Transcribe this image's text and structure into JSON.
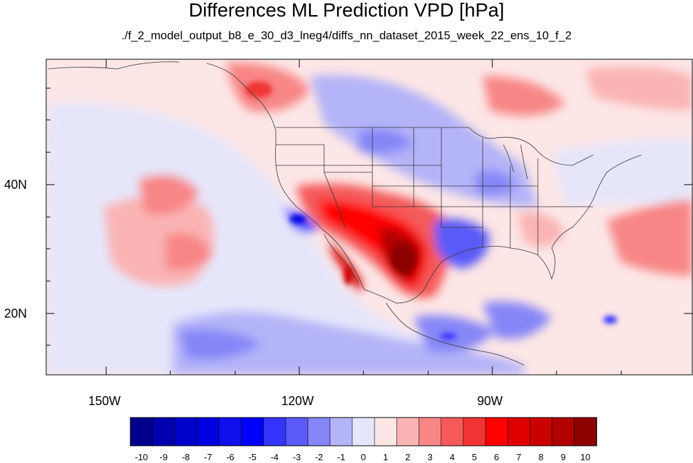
{
  "title": "Differences ML Prediction VPD [hPa]",
  "subtitle": "./f_2_model_output_b8_e_30_d3_lneg4/diffs_nn_dataset_2015_week_22_ens_10_f_2",
  "map": {
    "region": "North America and surrounding oceans",
    "projection": "cylindrical equidistant",
    "lon_labels": [
      "150W",
      "120W",
      "90W"
    ],
    "lat_labels": [
      "40N",
      "20N"
    ],
    "colormap": "blue-white-red diverging",
    "features": [
      "coastlines",
      "US state boundaries",
      "country borders"
    ]
  },
  "colorbar": {
    "labels": [
      "-10",
      "-9",
      "-8",
      "-7",
      "-6",
      "-5",
      "-4",
      "-3",
      "-2",
      "-1",
      "0",
      "1",
      "2",
      "3",
      "4",
      "5",
      "6",
      "7",
      "8",
      "9",
      "10"
    ],
    "colors": [
      "#00008c",
      "#0000b0",
      "#0000cc",
      "#0000e0",
      "#0f0fee",
      "#0000ff",
      "#3434fc",
      "#5a5af8",
      "#8686f8",
      "#b4b4f8",
      "#e6e6fa",
      "#fde6e6",
      "#fab4b4",
      "#f88686",
      "#f45a5a",
      "#f03434",
      "#ff0000",
      "#e00000",
      "#cc0000",
      "#b00000",
      "#8c0000"
    ]
  }
}
